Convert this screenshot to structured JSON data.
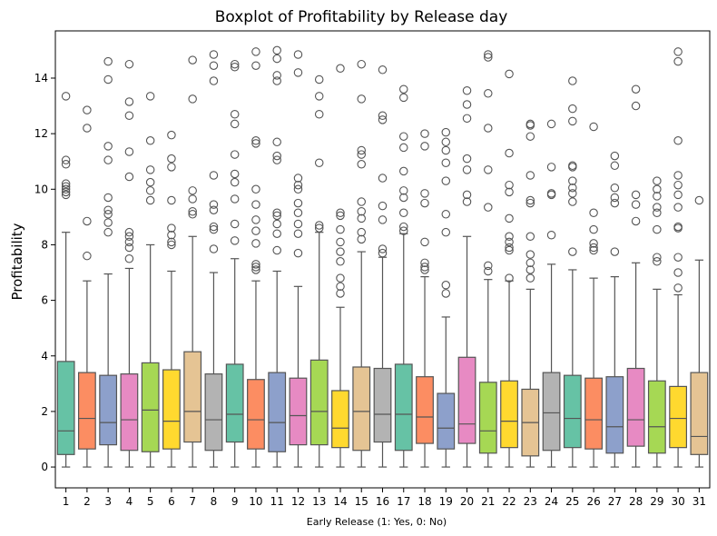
{
  "chart_data": {
    "type": "box",
    "title": "Boxplot of Profitability by Release day",
    "xlabel": "Early Release (1: Yes, 0: No)",
    "ylabel": "Profitability",
    "ylim": [
      -0.75,
      15.7
    ],
    "yticks": [
      0,
      2,
      4,
      6,
      8,
      10,
      12,
      14
    ],
    "grid": false,
    "legend": "none",
    "palette": [
      "#66c2a5",
      "#fc8d62",
      "#8da0cb",
      "#e78ac3",
      "#a6d854",
      "#ffd92f",
      "#e5c494",
      "#b3b3b3"
    ],
    "categories": [
      "1",
      "2",
      "3",
      "4",
      "5",
      "6",
      "7",
      "8",
      "9",
      "10",
      "11",
      "12",
      "13",
      "14",
      "15",
      "16",
      "17",
      "18",
      "19",
      "20",
      "21",
      "22",
      "23",
      "24",
      "25",
      "26",
      "27",
      "28",
      "29",
      "30",
      "31"
    ],
    "boxes": [
      {
        "q1": 0.45,
        "median": 1.3,
        "q3": 3.8,
        "whisker_low": 0,
        "whisker_high": 8.45,
        "outliers": [
          9.8,
          9.9,
          10.0,
          10.1,
          10.2,
          10.9,
          11.05,
          13.35
        ]
      },
      {
        "q1": 0.65,
        "median": 1.75,
        "q3": 3.4,
        "whisker_low": 0,
        "whisker_high": 6.7,
        "outliers": [
          7.6,
          8.85,
          12.2,
          12.85
        ]
      },
      {
        "q1": 0.8,
        "median": 1.6,
        "q3": 3.3,
        "whisker_low": 0,
        "whisker_high": 6.95,
        "outliers": [
          8.45,
          8.8,
          9.1,
          9.25,
          9.7,
          11.05,
          11.55,
          13.95,
          14.6
        ]
      },
      {
        "q1": 0.6,
        "median": 1.7,
        "q3": 3.35,
        "whisker_low": 0,
        "whisker_high": 7.15,
        "outliers": [
          7.5,
          7.9,
          8.1,
          8.3,
          8.45,
          10.45,
          11.35,
          12.65,
          13.15,
          14.5
        ]
      },
      {
        "q1": 0.55,
        "median": 2.05,
        "q3": 3.75,
        "whisker_low": 0,
        "whisker_high": 8.0,
        "outliers": [
          9.6,
          9.95,
          10.25,
          10.7,
          11.75,
          13.35
        ]
      },
      {
        "q1": 0.65,
        "median": 1.65,
        "q3": 3.5,
        "whisker_low": 0,
        "whisker_high": 7.05,
        "outliers": [
          8.0,
          8.1,
          8.35,
          8.6,
          9.6,
          10.8,
          11.1,
          11.95
        ]
      },
      {
        "q1": 0.9,
        "median": 2.0,
        "q3": 4.15,
        "whisker_low": 0,
        "whisker_high": 8.3,
        "outliers": [
          9.1,
          9.2,
          9.65,
          9.95,
          13.25,
          14.65
        ]
      },
      {
        "q1": 0.6,
        "median": 1.7,
        "q3": 3.35,
        "whisker_low": 0,
        "whisker_high": 7.0,
        "outliers": [
          7.85,
          8.55,
          8.65,
          9.25,
          9.45,
          10.5,
          13.9,
          14.45,
          14.85
        ]
      },
      {
        "q1": 0.9,
        "median": 1.9,
        "q3": 3.7,
        "whisker_low": 0,
        "whisker_high": 7.5,
        "outliers": [
          8.15,
          8.75,
          9.65,
          10.25,
          10.55,
          11.25,
          12.35,
          12.7,
          14.4,
          14.5
        ]
      },
      {
        "q1": 0.65,
        "median": 1.7,
        "q3": 3.15,
        "whisker_low": 0,
        "whisker_high": 6.7,
        "outliers": [
          7.1,
          7.2,
          7.3,
          8.05,
          8.5,
          8.9,
          9.45,
          10.0,
          11.65,
          11.75,
          14.45,
          14.95
        ]
      },
      {
        "q1": 0.55,
        "median": 1.6,
        "q3": 3.4,
        "whisker_low": 0,
        "whisker_high": 7.05,
        "outliers": [
          7.8,
          8.4,
          8.75,
          9.05,
          9.15,
          11.05,
          11.2,
          11.7,
          13.9,
          14.1,
          14.7,
          15.0
        ]
      },
      {
        "q1": 0.8,
        "median": 1.85,
        "q3": 3.2,
        "whisker_low": 0,
        "whisker_high": 6.5,
        "outliers": [
          7.7,
          8.4,
          8.75,
          9.15,
          9.5,
          10.0,
          10.15,
          10.4,
          14.2,
          14.85
        ]
      },
      {
        "q1": 0.8,
        "median": 2.0,
        "q3": 3.85,
        "whisker_low": 0,
        "whisker_high": 8.45,
        "outliers": [
          8.6,
          8.7,
          10.95,
          12.7,
          13.35,
          13.95
        ]
      },
      {
        "q1": 0.7,
        "median": 1.4,
        "q3": 2.75,
        "whisker_low": 0,
        "whisker_high": 5.75,
        "outliers": [
          6.25,
          6.5,
          6.8,
          7.4,
          7.75,
          8.1,
          8.55,
          9.05,
          9.15,
          14.35
        ]
      },
      {
        "q1": 0.6,
        "median": 2.0,
        "q3": 3.6,
        "whisker_low": 0,
        "whisker_high": 7.75,
        "outliers": [
          8.2,
          8.45,
          8.95,
          9.2,
          9.55,
          10.9,
          11.25,
          11.4,
          13.25,
          14.5
        ]
      },
      {
        "q1": 0.9,
        "median": 1.9,
        "q3": 3.55,
        "whisker_low": 0,
        "whisker_high": 7.55,
        "outliers": [
          7.7,
          7.85,
          8.9,
          9.4,
          10.4,
          12.5,
          12.65,
          14.3
        ]
      },
      {
        "q1": 0.6,
        "median": 1.9,
        "q3": 3.7,
        "whisker_low": 0,
        "whisker_high": 8.4,
        "outliers": [
          8.5,
          8.65,
          9.15,
          9.7,
          9.95,
          10.65,
          11.5,
          11.9,
          13.3,
          13.6
        ]
      },
      {
        "q1": 0.85,
        "median": 1.8,
        "q3": 3.25,
        "whisker_low": 0,
        "whisker_high": 6.85,
        "outliers": [
          7.1,
          7.2,
          7.35,
          8.1,
          9.5,
          9.85,
          11.55,
          12.0
        ]
      },
      {
        "q1": 0.65,
        "median": 1.4,
        "q3": 2.65,
        "whisker_low": 0,
        "whisker_high": 5.4,
        "outliers": [
          6.25,
          6.55,
          8.45,
          9.1,
          10.3,
          10.95,
          11.4,
          11.7,
          12.05
        ]
      },
      {
        "q1": 0.85,
        "median": 1.55,
        "q3": 3.95,
        "whisker_low": 0,
        "whisker_high": 8.3,
        "outliers": [
          9.55,
          9.8,
          10.7,
          11.1,
          12.55,
          13.05,
          13.55
        ]
      },
      {
        "q1": 0.5,
        "median": 1.3,
        "q3": 3.05,
        "whisker_low": 0,
        "whisker_high": 6.75,
        "outliers": [
          7.05,
          7.25,
          9.35,
          10.7,
          12.2,
          13.45,
          14.75,
          14.85
        ]
      },
      {
        "q1": 0.7,
        "median": 1.65,
        "q3": 3.1,
        "whisker_low": 0,
        "whisker_high": 6.7,
        "outliers": [
          6.8,
          7.8,
          7.9,
          8.1,
          8.3,
          8.95,
          9.9,
          10.15,
          11.3,
          14.15
        ]
      },
      {
        "q1": 0.4,
        "median": 1.6,
        "q3": 2.8,
        "whisker_low": 0,
        "whisker_high": 6.4,
        "outliers": [
          6.8,
          7.1,
          7.35,
          7.65,
          8.3,
          9.5,
          9.6,
          10.5,
          11.9,
          12.3,
          12.35
        ]
      },
      {
        "q1": 0.6,
        "median": 1.95,
        "q3": 3.4,
        "whisker_low": 0,
        "whisker_high": 7.3,
        "outliers": [
          8.35,
          9.8,
          9.85,
          10.8,
          12.35
        ]
      },
      {
        "q1": 0.7,
        "median": 1.75,
        "q3": 3.3,
        "whisker_low": 0,
        "whisker_high": 7.1,
        "outliers": [
          7.75,
          9.55,
          9.85,
          10.05,
          10.3,
          10.8,
          10.85,
          12.45,
          12.9,
          13.9
        ]
      },
      {
        "q1": 0.65,
        "median": 1.7,
        "q3": 3.2,
        "whisker_low": 0,
        "whisker_high": 6.8,
        "outliers": [
          7.8,
          7.9,
          8.05,
          8.55,
          9.15,
          12.25
        ]
      },
      {
        "q1": 0.5,
        "median": 1.45,
        "q3": 3.25,
        "whisker_low": 0,
        "whisker_high": 6.85,
        "outliers": [
          7.75,
          9.5,
          9.7,
          10.05,
          10.85,
          11.2
        ]
      },
      {
        "q1": 0.75,
        "median": 1.7,
        "q3": 3.55,
        "whisker_low": 0,
        "whisker_high": 7.35,
        "outliers": [
          8.85,
          9.45,
          9.8,
          13.0,
          13.6
        ]
      },
      {
        "q1": 0.5,
        "median": 1.45,
        "q3": 3.1,
        "whisker_low": 0,
        "whisker_high": 6.4,
        "outliers": [
          7.4,
          7.55,
          8.55,
          9.15,
          9.35,
          9.75,
          10.0,
          10.3
        ]
      },
      {
        "q1": 0.7,
        "median": 1.75,
        "q3": 2.9,
        "whisker_low": 0,
        "whisker_high": 6.2,
        "outliers": [
          6.45,
          7.0,
          7.55,
          8.6,
          8.65,
          9.35,
          9.8,
          10.15,
          10.5,
          11.75,
          14.6,
          14.95
        ]
      },
      {
        "q1": 0.45,
        "median": 1.1,
        "q3": 3.4,
        "whisker_low": 0,
        "whisker_high": 7.45,
        "outliers": [
          9.6
        ]
      }
    ]
  }
}
